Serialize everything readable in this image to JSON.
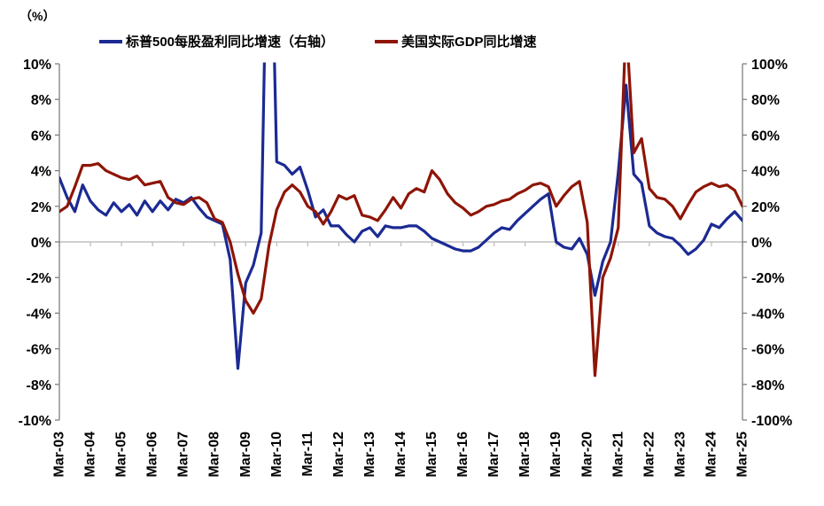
{
  "unit_label": "（%）",
  "legend": [
    {
      "label": "标普500每股盈利同比增速（右轴）",
      "color": "#1B2A93"
    },
    {
      "label": "美国实际GDP同比增速",
      "color": "#8E1507"
    }
  ],
  "chart_data": {
    "type": "line",
    "frequency": "quarterly",
    "x_tick_labels": [
      "Mar-03",
      "Mar-04",
      "Mar-05",
      "Mar-06",
      "Mar-07",
      "Mar-08",
      "Mar-09",
      "Mar-10",
      "Mar-11",
      "Mar-12",
      "Mar-13",
      "Mar-14",
      "Mar-15",
      "Mar-16",
      "Mar-17",
      "Mar-18",
      "Mar-19",
      "Mar-20",
      "Mar-21",
      "Mar-22",
      "Mar-23",
      "Mar-24",
      "Mar-25"
    ],
    "label_every_n_points": 4,
    "left_axis": {
      "min": -10,
      "max": 10,
      "step": 2,
      "suffix": "%",
      "label_color": "#000000"
    },
    "right_axis": {
      "min": -100,
      "max": 100,
      "step": 20,
      "suffix": "%",
      "label_color": "#000000",
      "negative_label_color": "#FF0000"
    },
    "grid": "zero-line-only",
    "legend_position": "top",
    "series": [
      {
        "name": "标普500每股盈利同比增速（右轴）",
        "axis": "right",
        "color": "#1B2A93",
        "values": [
          36,
          25,
          17,
          32,
          23,
          18,
          15,
          22,
          17,
          21,
          15,
          23,
          17,
          23,
          18,
          24,
          22,
          25,
          19,
          14,
          12,
          10,
          -10,
          -71,
          -23,
          -13,
          5,
          240,
          45,
          43,
          38,
          42,
          29,
          14,
          18,
          9,
          9,
          4,
          0,
          6,
          8,
          3,
          9,
          8,
          8,
          9,
          9,
          6,
          2,
          0,
          -2,
          -4,
          -5,
          -5,
          -3,
          1,
          5,
          8,
          7,
          12,
          16,
          20,
          24,
          27,
          0,
          -3,
          -4,
          2,
          -7,
          -30,
          -11,
          0,
          39,
          88,
          38,
          33,
          9,
          5,
          3,
          2,
          -2,
          -7,
          -4,
          1,
          10,
          8,
          13,
          17,
          12
        ]
      },
      {
        "name": "美国实际GDP同比增速",
        "axis": "left",
        "color": "#8E1507",
        "values": [
          1.7,
          2.0,
          3.1,
          4.3,
          4.3,
          4.4,
          4.0,
          3.8,
          3.6,
          3.5,
          3.7,
          3.2,
          3.3,
          3.4,
          2.5,
          2.2,
          2.1,
          2.4,
          2.5,
          2.2,
          1.3,
          1.1,
          0.0,
          -1.8,
          -3.3,
          -4.0,
          -3.2,
          -0.2,
          1.8,
          2.8,
          3.2,
          2.8,
          2.0,
          1.7,
          1.0,
          1.7,
          2.6,
          2.4,
          2.6,
          1.5,
          1.4,
          1.2,
          1.8,
          2.5,
          1.9,
          2.7,
          3.0,
          2.8,
          4.0,
          3.5,
          2.7,
          2.2,
          1.9,
          1.5,
          1.7,
          2.0,
          2.1,
          2.3,
          2.4,
          2.7,
          2.9,
          3.2,
          3.3,
          3.1,
          2.0,
          2.6,
          3.1,
          3.4,
          1.1,
          -7.5,
          -2.0,
          -0.9,
          0.8,
          12.4,
          5.0,
          5.8,
          3.0,
          2.5,
          2.4,
          2.0,
          1.3,
          2.1,
          2.8,
          3.1,
          3.3,
          3.1,
          3.2,
          2.9,
          2.0
        ]
      }
    ]
  }
}
